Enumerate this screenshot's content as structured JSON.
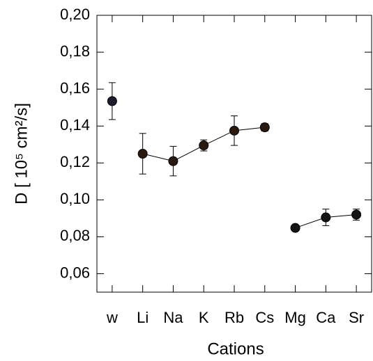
{
  "chart_data": {
    "type": "errorbar",
    "ylabel": "D [ 10⁵ cm²/s]",
    "xlabel": "Cations",
    "categories": [
      "w",
      "Li",
      "Na",
      "K",
      "Rb",
      "Cs",
      "Mg",
      "Ca",
      "Sr"
    ],
    "series": [
      {
        "color": "#1c1c2c",
        "values": [
          0.1535,
          null,
          null,
          null,
          null,
          null,
          null,
          null,
          null
        ],
        "errors": [
          0.01,
          null,
          null,
          null,
          null,
          null,
          null,
          null,
          null
        ]
      },
      {
        "color": "#2a1a0e",
        "values": [
          null,
          0.125,
          0.121,
          0.1295,
          0.1375,
          0.1393,
          null,
          null,
          null
        ],
        "errors": [
          null,
          0.011,
          0.008,
          0.003,
          0.008,
          0.002,
          null,
          null,
          null
        ]
      },
      {
        "color": "#141414",
        "values": [
          null,
          null,
          null,
          null,
          null,
          null,
          0.0848,
          0.0905,
          0.092
        ],
        "errors": [
          null,
          null,
          null,
          null,
          null,
          null,
          0.001,
          0.0045,
          0.003
        ]
      }
    ],
    "ylim": [
      0.05,
      0.2
    ],
    "yticks": [
      {
        "value": 0.06,
        "label": "0,06"
      },
      {
        "value": 0.08,
        "label": "0,08"
      },
      {
        "value": 0.1,
        "label": "0,10"
      },
      {
        "value": 0.12,
        "label": "0,12"
      },
      {
        "value": 0.14,
        "label": "0,14"
      },
      {
        "value": 0.16,
        "label": "0,16"
      },
      {
        "value": 0.18,
        "label": "0,18"
      },
      {
        "value": 0.2,
        "label": "0,20"
      }
    ]
  }
}
